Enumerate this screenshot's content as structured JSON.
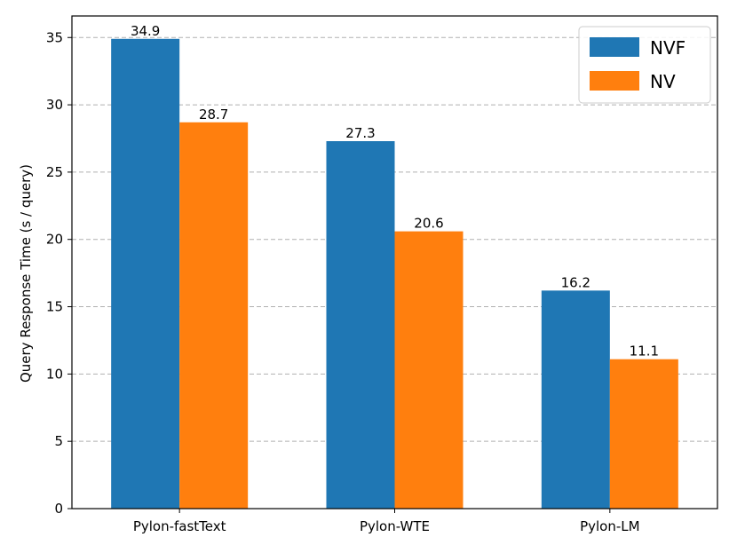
{
  "chart_data": {
    "type": "bar",
    "title": "",
    "xlabel": "",
    "ylabel": "Query Response Time (s / query)",
    "categories": [
      "Pylon-fastText",
      "Pylon-WTE",
      "Pylon-LM"
    ],
    "series": [
      {
        "name": "NVF",
        "values": [
          34.9,
          27.3,
          16.2
        ],
        "color": "#1f77b4"
      },
      {
        "name": "NV",
        "values": [
          28.7,
          20.6,
          11.1
        ],
        "color": "#ff7f0e"
      }
    ],
    "data_labels": [
      [
        "34.9",
        "27.3",
        "16.2"
      ],
      [
        "28.7",
        "20.6",
        "11.1"
      ]
    ],
    "ylim": [
      0,
      36.6
    ],
    "yticks": [
      0,
      5,
      10,
      15,
      20,
      25,
      30,
      35
    ],
    "ytick_labels": [
      "0",
      "5",
      "10",
      "15",
      "20",
      "25",
      "30",
      "35"
    ],
    "grid": "y-dashed",
    "legend_position": "top-right"
  }
}
